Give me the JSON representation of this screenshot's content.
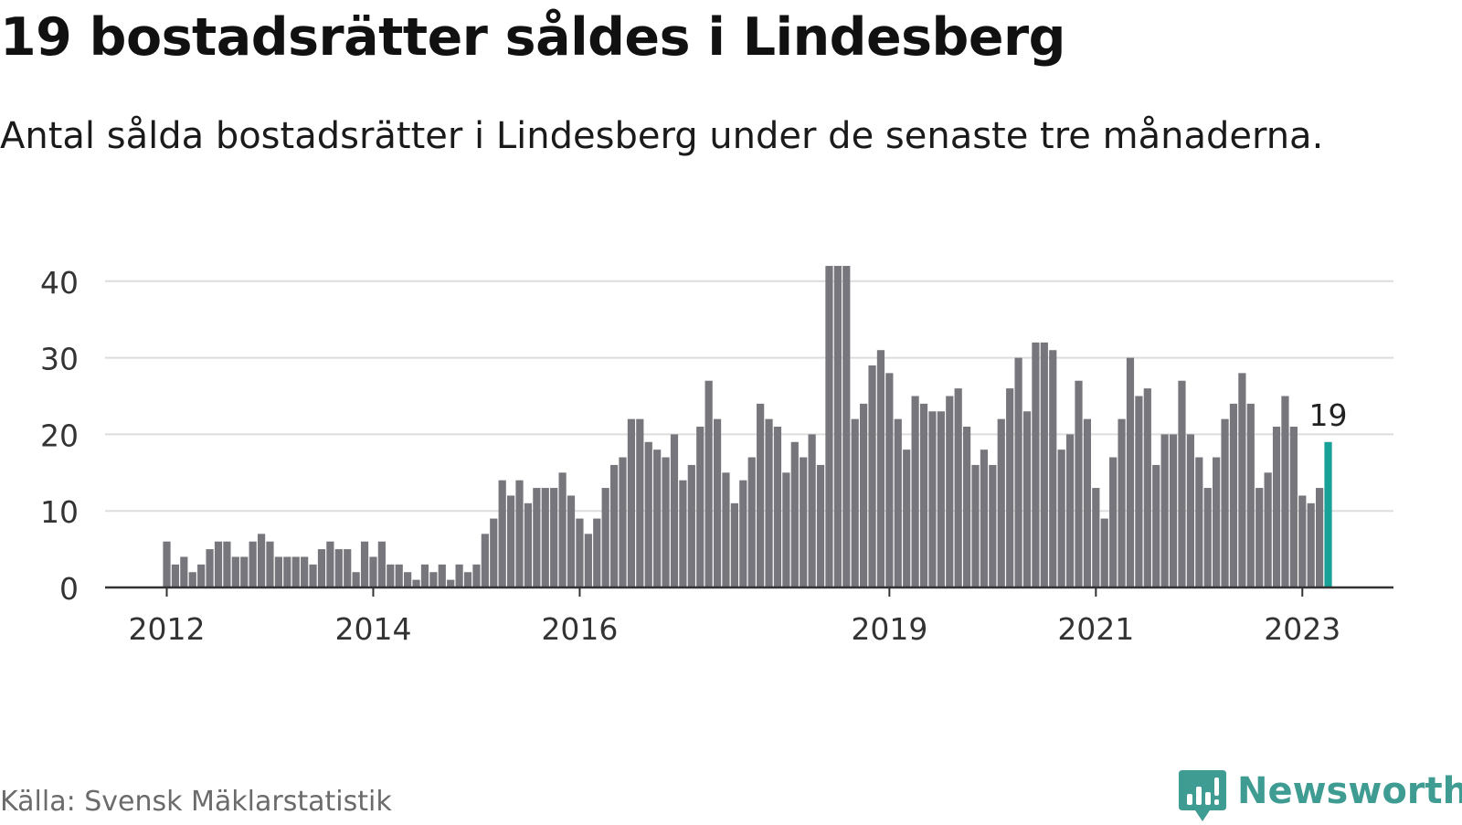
{
  "title": "19 bostadsrätter såldes i Lindesberg",
  "subtitle": "Antal sålda bostadsrätter i Lindesberg under de senaste tre månaderna.",
  "source": "Källa: Svensk Mäklarstatistik",
  "brand": {
    "name": "Newsworthy",
    "icon": "newsworthy-logo-icon",
    "color": "#3f9c92"
  },
  "colors": {
    "bar": "#77767c",
    "highlight": "#17a197",
    "grid": "#dddddd",
    "axis": "#333333",
    "text": "#333333"
  },
  "chart_data": {
    "type": "bar",
    "x_start": "2012-01",
    "x_end": "2023-04",
    "ylim": [
      0,
      42
    ],
    "yticks": [
      0,
      10,
      20,
      30,
      40
    ],
    "xticks": [
      "2012",
      "2014",
      "2016",
      "2019",
      "2021",
      "2023"
    ],
    "grid": true,
    "values": [
      6,
      3,
      4,
      2,
      3,
      5,
      6,
      6,
      4,
      4,
      6,
      7,
      6,
      4,
      4,
      4,
      4,
      3,
      5,
      6,
      5,
      5,
      2,
      6,
      4,
      6,
      3,
      3,
      2,
      1,
      3,
      2,
      3,
      1,
      3,
      2,
      3,
      7,
      9,
      14,
      12,
      14,
      11,
      13,
      13,
      13,
      15,
      12,
      9,
      7,
      9,
      13,
      16,
      17,
      22,
      22,
      19,
      18,
      17,
      20,
      14,
      16,
      21,
      27,
      22,
      15,
      11,
      14,
      17,
      24,
      22,
      21,
      15,
      19,
      17,
      20,
      16,
      42,
      42,
      42,
      22,
      24,
      29,
      31,
      28,
      22,
      18,
      25,
      24,
      23,
      23,
      25,
      26,
      21,
      16,
      18,
      16,
      22,
      26,
      30,
      23,
      32,
      32,
      31,
      18,
      20,
      27,
      22,
      13,
      9,
      17,
      22,
      30,
      25,
      26,
      16,
      20,
      20,
      27,
      20,
      17,
      13,
      17,
      22,
      24,
      28,
      24,
      13,
      15,
      21,
      25,
      21,
      12,
      11,
      13,
      19
    ],
    "highlight_index": 135,
    "highlight_label": "19"
  }
}
